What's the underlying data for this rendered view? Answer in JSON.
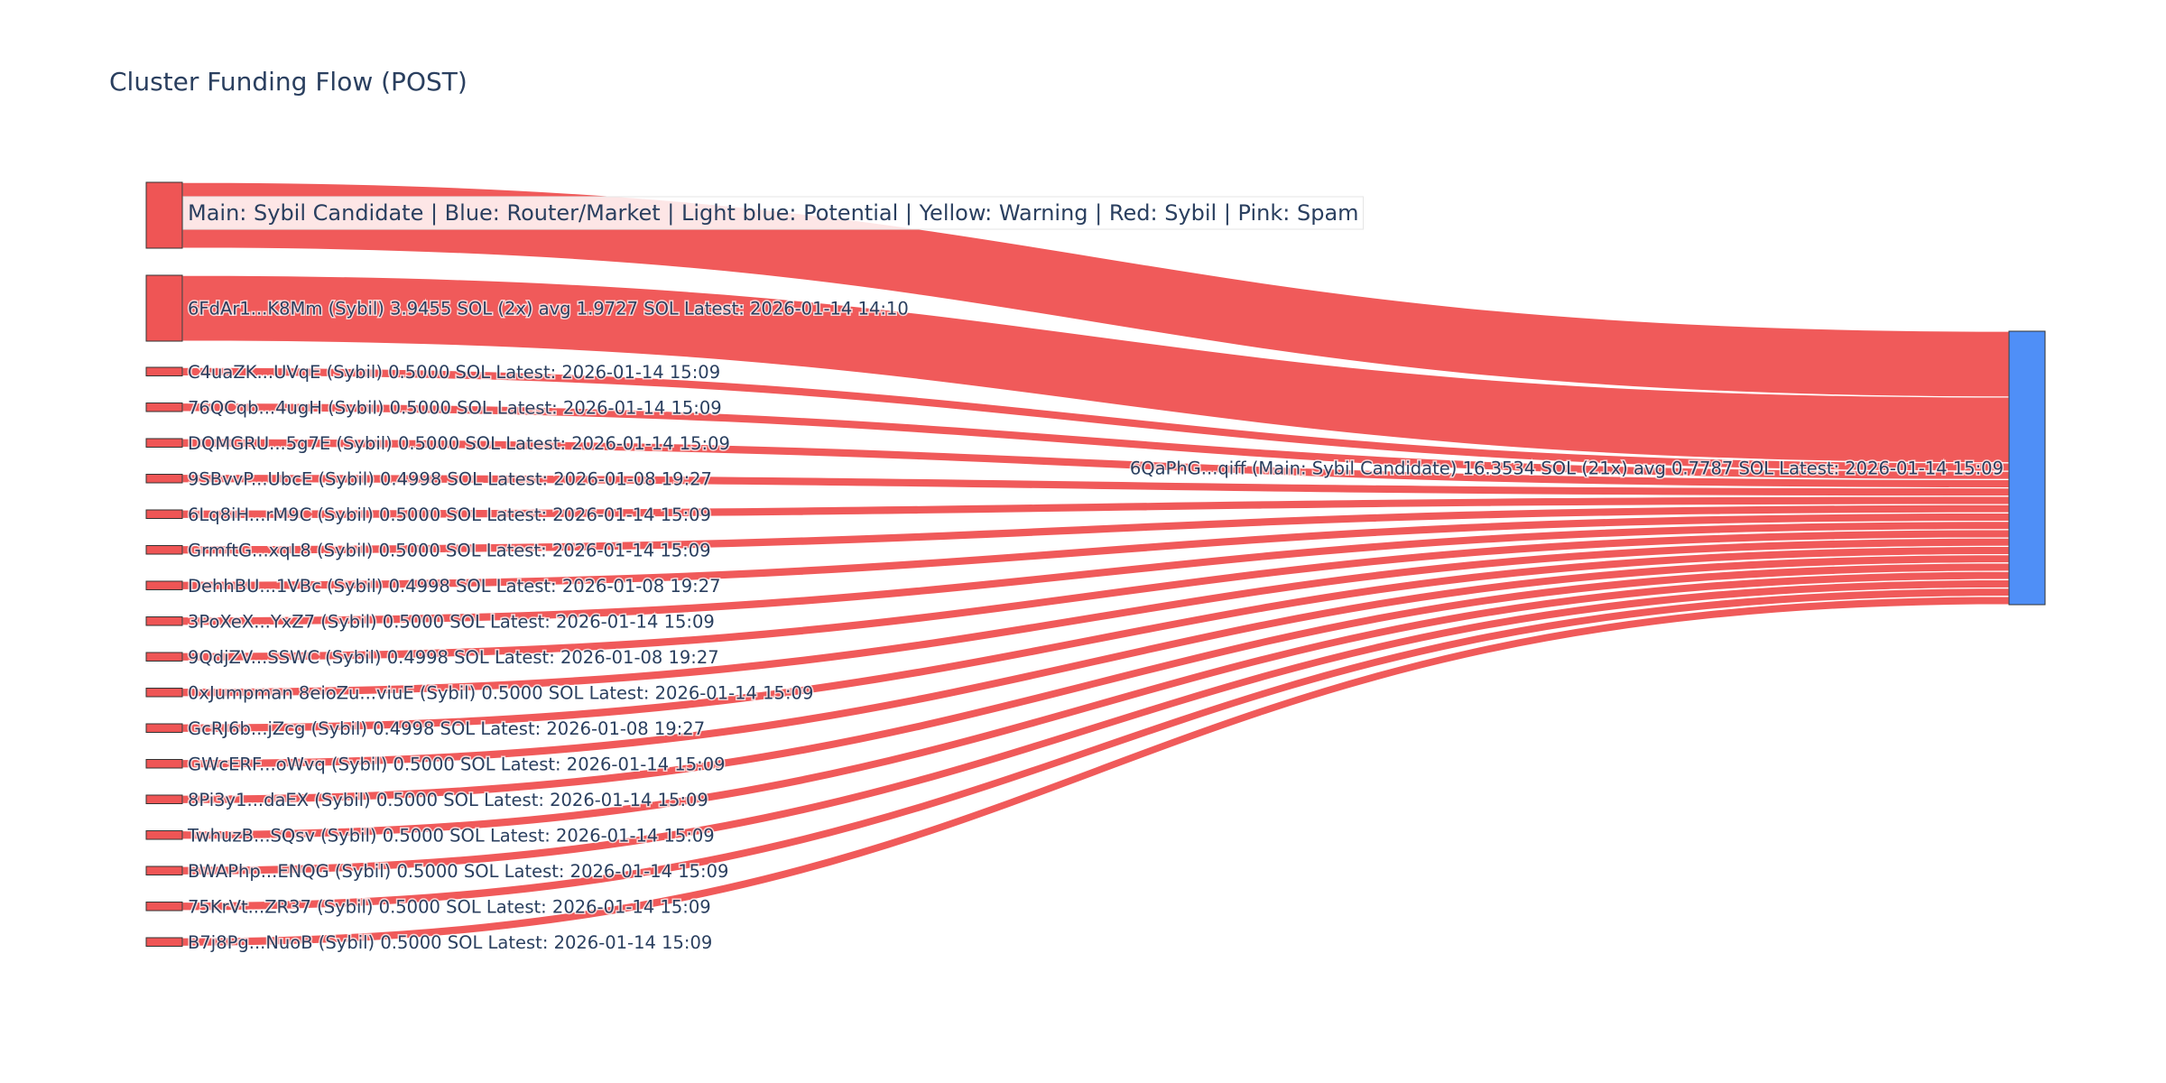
{
  "title": "Cluster Funding Flow (POST)",
  "legend": "Main: Sybil Candidate  |  Blue: Router/Market | Light blue: Potential | Yellow: Warning | Red: Sybil | Pink: Spam",
  "colors": {
    "sybil": "#ef5555",
    "main": "#4f8ff7",
    "node_border": "#333333",
    "text": "#2a3f5f"
  },
  "chart_data": {
    "type": "sankey",
    "title": "Cluster Funding Flow (POST)",
    "target": {
      "label": "6QaPhG...qiff (Main: Sybil Candidate) 16.3534 SOL (21x) avg 0.7787 SOL Latest: 2026-01-14 15:09",
      "value": 16.3534,
      "color": "#4f8ff7"
    },
    "sources": [
      {
        "label": "",
        "value": 3.9455,
        "color": "#ef5555"
      },
      {
        "label": "6FdAr1...K8Mm (Sybil) 3.9455 SOL (2x) avg 1.9727 SOL Latest: 2026-01-14 14:10",
        "value": 3.9455,
        "color": "#ef5555"
      },
      {
        "label": "C4uaZK...UVqE (Sybil) 0.5000 SOL Latest: 2026-01-14 15:09",
        "value": 0.5,
        "color": "#ef5555"
      },
      {
        "label": "76QCqb...4ugH (Sybil) 0.5000 SOL Latest: 2026-01-14 15:09",
        "value": 0.5,
        "color": "#ef5555"
      },
      {
        "label": "DQMGRU...5g7E (Sybil) 0.5000 SOL Latest: 2026-01-14 15:09",
        "value": 0.5,
        "color": "#ef5555"
      },
      {
        "label": "9SBvvP...UbcE (Sybil) 0.4998 SOL Latest: 2026-01-08 19:27",
        "value": 0.4998,
        "color": "#ef5555"
      },
      {
        "label": "6Lq8iH...rM9C (Sybil) 0.5000 SOL Latest: 2026-01-14 15:09",
        "value": 0.5,
        "color": "#ef5555"
      },
      {
        "label": "GrmftG...xqL8 (Sybil) 0.5000 SOL Latest: 2026-01-14 15:09",
        "value": 0.5,
        "color": "#ef5555"
      },
      {
        "label": "DehhBU...1VBc (Sybil) 0.4998 SOL Latest: 2026-01-08 19:27",
        "value": 0.4998,
        "color": "#ef5555"
      },
      {
        "label": "3PoXeX...YxZ7 (Sybil) 0.5000 SOL Latest: 2026-01-14 15:09",
        "value": 0.5,
        "color": "#ef5555"
      },
      {
        "label": "9QdjZV...SSWC (Sybil) 0.4998 SOL Latest: 2026-01-08 19:27",
        "value": 0.4998,
        "color": "#ef5555"
      },
      {
        "label": "0xJumpman 8eioZu...viuE (Sybil) 0.5000 SOL Latest: 2026-01-14 15:09",
        "value": 0.5,
        "color": "#ef5555"
      },
      {
        "label": "GcRJ6b...jZcg (Sybil) 0.4998 SOL Latest: 2026-01-08 19:27",
        "value": 0.4998,
        "color": "#ef5555"
      },
      {
        "label": "GWcERF...oWvq (Sybil) 0.5000 SOL Latest: 2026-01-14 15:09",
        "value": 0.5,
        "color": "#ef5555"
      },
      {
        "label": "8Pi3y1...daEX (Sybil) 0.5000 SOL Latest: 2026-01-14 15:09",
        "value": 0.5,
        "color": "#ef5555"
      },
      {
        "label": "TwhuzB...SQsv (Sybil) 0.5000 SOL Latest: 2026-01-14 15:09",
        "value": 0.5,
        "color": "#ef5555"
      },
      {
        "label": "BWAPhp...ENQG (Sybil) 0.5000 SOL Latest: 2026-01-14 15:09",
        "value": 0.5,
        "color": "#ef5555"
      },
      {
        "label": "75KrVt...ZR37 (Sybil) 0.5000 SOL Latest: 2026-01-14 15:09",
        "value": 0.5,
        "color": "#ef5555"
      },
      {
        "label": "B7j8Pg...NuoB (Sybil) 0.5000 SOL Latest: 2026-01-14 15:09",
        "value": 0.5,
        "color": "#ef5555"
      }
    ]
  }
}
